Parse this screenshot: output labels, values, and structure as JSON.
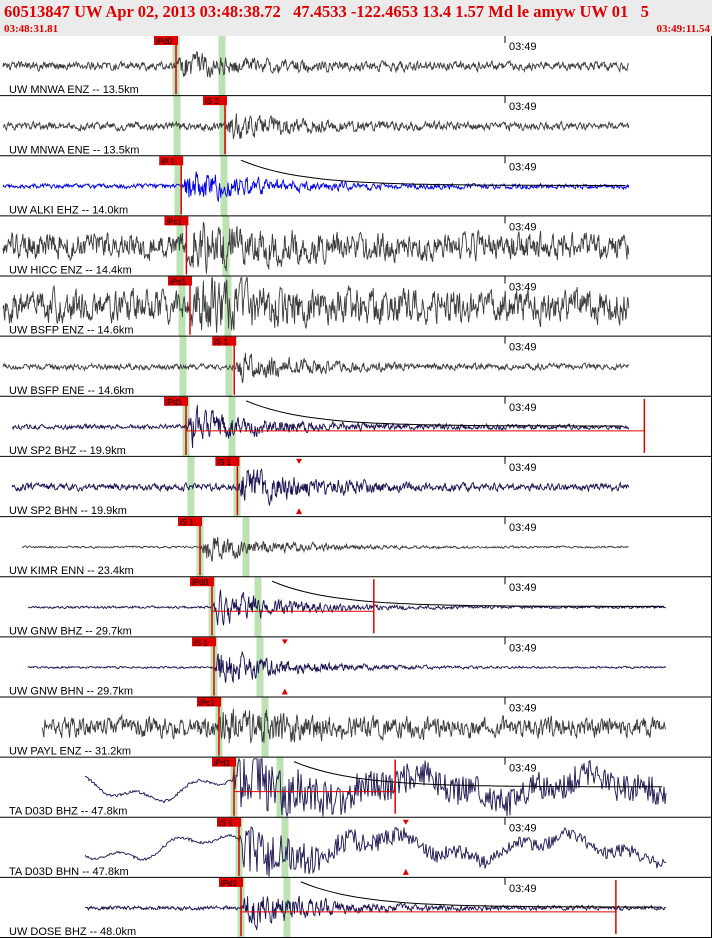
{
  "header": {
    "title": "60513847 UW Apr 02, 2013 03:48:38.72   47.4533 -122.4653 13.4 1.57 Md le amyw UW 01   5",
    "start_time": "03:48:31.81",
    "end_time": "03:49:11.54"
  },
  "colors": {
    "header_text": "#e00000",
    "header_bg": "#ebebeb",
    "wave_gray": "#3c3c3c",
    "wave_blue": "#0000e6",
    "wave_navy": "#1a1450",
    "pick": "#e00000",
    "travel_band": "#b8e0b0",
    "divider": "#000000"
  },
  "chart_data": {
    "type": "line",
    "title": "60513847 UW Apr 02, 2013 03:48:38.72   47.4533 -122.4653 13.4 1.57 Md le amyw UW 01   5",
    "x_axis": {
      "start": "03:48:31.81",
      "end": "03:49:11.54",
      "minute_tick_label": "03:49"
    },
    "series": [
      {
        "name": "UW MNWA ENZ -- 13.5km",
        "pick": "Pd0",
        "pick_rel": 0.0,
        "p_start": 0.0,
        "signal_end": 0.88,
        "noise": 0.22,
        "quake": 0.55,
        "color": "gray"
      },
      {
        "name": "UW MNWA ENE -- 13.5km",
        "pick": "S 2",
        "pick_rel": 0.3,
        "p_start": 0.0,
        "signal_end": 0.88,
        "noise": 0.2,
        "quake": 0.55,
        "color": "gray"
      },
      {
        "name": "UW ALKI EHZ -- 14.0km",
        "pick": "P 1",
        "pick_rel": 0.02,
        "p_start": 0.0,
        "signal_end": 0.88,
        "noise": 0.12,
        "quake": 0.85,
        "color": "blue",
        "coda": true
      },
      {
        "name": "UW HICC ENZ -- 14.4km",
        "pick": "Pc1",
        "pick_rel": 0.04,
        "p_start": 0.0,
        "signal_end": 0.88,
        "noise": 0.65,
        "quake": 0.85,
        "color": "gray"
      },
      {
        "name": "UW BSFP ENZ -- 14.6km",
        "pick": "Pd1",
        "pick_rel": 0.05,
        "p_start": 0.0,
        "signal_end": 0.88,
        "noise": 0.8,
        "quake": 0.9,
        "color": "gray"
      },
      {
        "name": "UW BSFP ENE -- 14.6km",
        "pick": "S 1",
        "pick_rel": 0.32,
        "p_start": 0.0,
        "signal_end": 0.88,
        "noise": 0.15,
        "quake": 0.7,
        "color": "gray"
      },
      {
        "name": "UW SP2 BHZ -- 19.9km",
        "pick": "Pd1",
        "pick_rel": 0.0,
        "p_start": 0.02,
        "signal_end": 0.905,
        "noise": 0.12,
        "quake": 0.95,
        "color": "navy",
        "coda": true,
        "end_mark": 0.905
      },
      {
        "name": "UW SP2 BHN -- 19.9km",
        "pick": "S 1",
        "pick_rel": 0.29,
        "p_start": 0.02,
        "signal_end": 0.895,
        "noise": 0.18,
        "quake": 0.9,
        "color": "navy",
        "amp_mark": 0.42
      },
      {
        "name": "UW KIMR ENN -- 23.4km",
        "pick": "S 1",
        "pick_rel": 0.0,
        "p_start": 0.03,
        "signal_end": 0.91,
        "noise": 0.05,
        "quake": 0.8,
        "color": "gray"
      },
      {
        "name": "UW GNW BHZ -- 29.7km",
        "pick": "Pd0",
        "pick_rel": 0.0,
        "p_start": 0.05,
        "signal_end": 0.93,
        "noise": 0.06,
        "quake": 0.9,
        "color": "navy",
        "coda": true,
        "end_mark": 0.525
      },
      {
        "name": "UW GNW BHN -- 29.7km",
        "pick": "S 1",
        "pick_rel": 0.0,
        "p_start": 0.05,
        "signal_end": 0.93,
        "noise": 0.05,
        "quake": 0.95,
        "color": "navy",
        "amp_mark": 0.4
      },
      {
        "name": "UW PAYL ENZ -- 31.2km",
        "pick": "Pc1",
        "pick_rel": 0.0,
        "p_start": 0.06,
        "signal_end": 0.94,
        "noise": 0.5,
        "quake": 0.7,
        "color": "gray"
      },
      {
        "name": "TA D03D BHZ -- 47.8km",
        "pick": "Pd1",
        "pick_rel": 0.0,
        "p_start": 0.12,
        "signal_end": 0.95,
        "noise": 0.55,
        "quake": 0.85,
        "color": "navy",
        "coda": true,
        "end_mark": 0.555,
        "slow": true
      },
      {
        "name": "TA D03D BHN -- 47.8km",
        "pick": "S 1",
        "pick_rel": 0.0,
        "p_start": 0.12,
        "signal_end": 0.95,
        "noise": 0.25,
        "quake": 0.95,
        "color": "navy",
        "amp_mark": 0.57,
        "slow": true
      },
      {
        "name": "UW DOSE BHZ -- 48.0km",
        "pick": "Pd1",
        "pick_rel": 0.0,
        "p_start": 0.12,
        "signal_end": 0.95,
        "noise": 0.1,
        "quake": 0.95,
        "color": "navy",
        "coda": true,
        "end_mark": 0.865
      }
    ]
  }
}
